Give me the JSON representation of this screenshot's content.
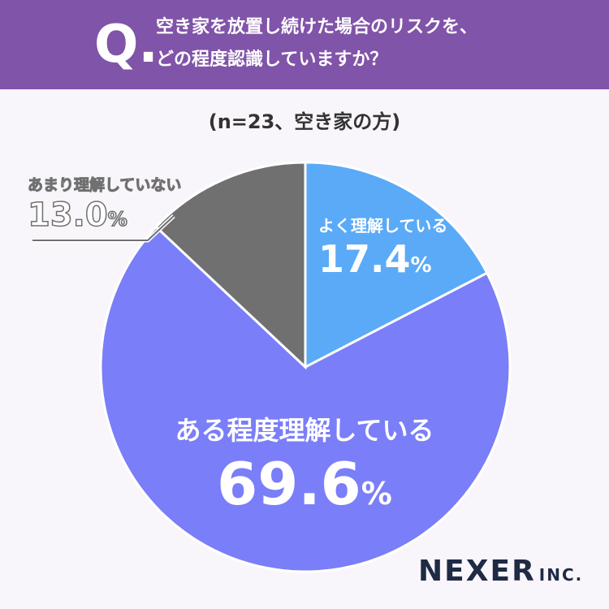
{
  "header": {
    "q_mark": "Q.",
    "question": "空き家を放置し続けた場合のリスクを、\nどの程度認識していますか？"
  },
  "sample_note": "(n=23、空き家の方)",
  "chart_data": {
    "type": "pie",
    "title": "空き家を放置し続けた場合のリスクを、どの程度認識していますか？",
    "slices": [
      {
        "label": "よく理解している",
        "value": 17.4,
        "value_text": "17.4",
        "unit": "%",
        "color": "#5aaaf7"
      },
      {
        "label": "ある程度理解している",
        "value": 69.6,
        "value_text": "69.6",
        "unit": "%",
        "color": "#7a7ef8"
      },
      {
        "label": "あまり理解していない",
        "value": 13.0,
        "value_text": "13.0",
        "unit": "%",
        "color": "#707070"
      }
    ],
    "start_angle_deg": 0,
    "direction": "clockwise"
  },
  "brand": {
    "name": "NEXER",
    "suffix": "INC."
  },
  "colors": {
    "header": "#8054a8",
    "background": "#f9f6fb"
  }
}
